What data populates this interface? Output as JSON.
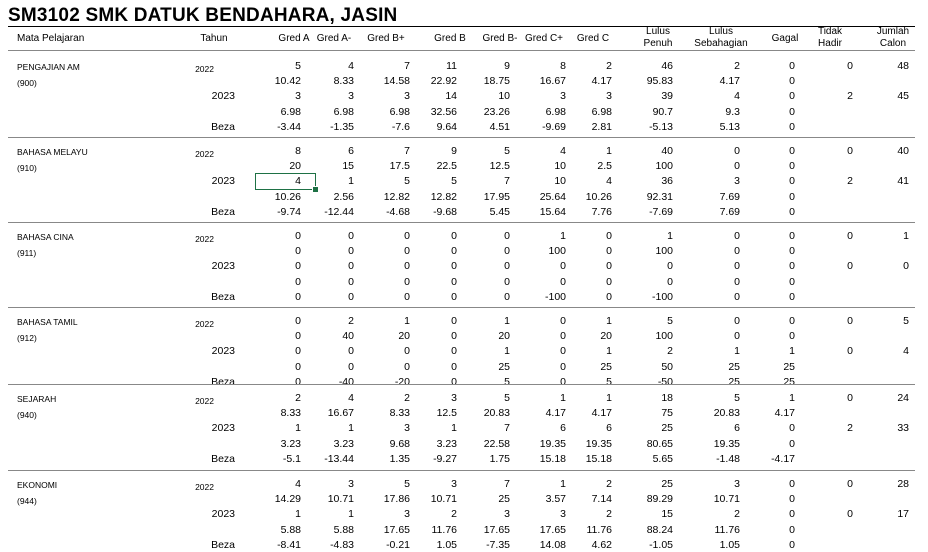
{
  "title": "SM3102 SMK DATUK BENDAHARA, JASIN",
  "headers": [
    [
      "Mata Pelajaran"
    ],
    [
      "Tahun"
    ],
    [
      "Gred A"
    ],
    [
      "Gred A-"
    ],
    [
      "Gred B+"
    ],
    [
      "Gred B"
    ],
    [
      "Gred B-"
    ],
    [
      "Gred C+"
    ],
    [
      "Gred C"
    ],
    [
      "Lulus",
      "Penuh"
    ],
    [
      "Lulus",
      "Sebahagian"
    ],
    [
      "Gagal"
    ],
    [
      "Tidak",
      "Hadir"
    ],
    [
      "Jumlah",
      "Calon"
    ]
  ],
  "beza_label": "Beza",
  "subjects": [
    {
      "name": "PENGAJIAN AM",
      "code": "(900)",
      "year1": "2022",
      "year2": "2023",
      "rows": [
        [
          "5",
          "4",
          "7",
          "11",
          "9",
          "8",
          "2",
          "46",
          "2",
          "0"
        ],
        [
          "10.42",
          "8.33",
          "14.58",
          "22.92",
          "18.75",
          "16.67",
          "4.17",
          "95.83",
          "4.17",
          "0"
        ],
        [
          "3",
          "3",
          "3",
          "14",
          "10",
          "3",
          "3",
          "39",
          "4",
          "0"
        ],
        [
          "6.98",
          "6.98",
          "6.98",
          "32.56",
          "23.26",
          "6.98",
          "6.98",
          "90.7",
          "9.3",
          "0"
        ],
        [
          "-3.44",
          "-1.35",
          "-7.6",
          "9.64",
          "4.51",
          "-9.69",
          "2.81",
          "-5.13",
          "5.13",
          "0"
        ]
      ],
      "th1": "0",
      "jc1": "48",
      "th2": "2",
      "jc2": "45"
    },
    {
      "name": "BAHASA MELAYU",
      "code": "(910)",
      "year1": "2022",
      "year2": "2023",
      "rows": [
        [
          "8",
          "6",
          "7",
          "9",
          "5",
          "4",
          "1",
          "40",
          "0",
          "0"
        ],
        [
          "20",
          "15",
          "17.5",
          "22.5",
          "12.5",
          "10",
          "2.5",
          "100",
          "0",
          "0"
        ],
        [
          "4",
          "1",
          "5",
          "5",
          "7",
          "10",
          "4",
          "36",
          "3",
          "0"
        ],
        [
          "10.26",
          "2.56",
          "12.82",
          "12.82",
          "17.95",
          "25.64",
          "10.26",
          "92.31",
          "7.69",
          "0"
        ],
        [
          "-9.74",
          "-12.44",
          "-4.68",
          "-9.68",
          "5.45",
          "15.64",
          "7.76",
          "-7.69",
          "7.69",
          "0"
        ]
      ],
      "th1": "0",
      "jc1": "40",
      "th2": "2",
      "jc2": "41"
    },
    {
      "name": "BAHASA CINA",
      "code": "(911)",
      "year1": "2022",
      "year2": "2023",
      "rows": [
        [
          "0",
          "0",
          "0",
          "0",
          "0",
          "1",
          "0",
          "1",
          "0",
          "0"
        ],
        [
          "0",
          "0",
          "0",
          "0",
          "0",
          "100",
          "0",
          "100",
          "0",
          "0"
        ],
        [
          "0",
          "0",
          "0",
          "0",
          "0",
          "0",
          "0",
          "0",
          "0",
          "0"
        ],
        [
          "0",
          "0",
          "0",
          "0",
          "0",
          "0",
          "0",
          "0",
          "0",
          "0"
        ],
        [
          "0",
          "0",
          "0",
          "0",
          "0",
          "-100",
          "0",
          "-100",
          "0",
          "0"
        ]
      ],
      "th1": "0",
      "jc1": "1",
      "th2": "0",
      "jc2": "0"
    },
    {
      "name": "BAHASA TAMIL",
      "code": "(912)",
      "year1": "2022",
      "year2": "2023",
      "rows": [
        [
          "0",
          "2",
          "1",
          "0",
          "1",
          "0",
          "1",
          "5",
          "0",
          "0"
        ],
        [
          "0",
          "40",
          "20",
          "0",
          "20",
          "0",
          "20",
          "100",
          "0",
          "0"
        ],
        [
          "0",
          "0",
          "0",
          "0",
          "1",
          "0",
          "1",
          "2",
          "1",
          "1"
        ],
        [
          "0",
          "0",
          "0",
          "0",
          "25",
          "0",
          "25",
          "50",
          "25",
          "25"
        ],
        [
          "0",
          "-40",
          "-20",
          "0",
          "5",
          "0",
          "5",
          "-50",
          "25",
          "25"
        ]
      ],
      "th1": "0",
      "jc1": "5",
      "th2": "0",
      "jc2": "4"
    },
    {
      "name": "SEJARAH",
      "code": "(940)",
      "year1": "2022",
      "year2": "2023",
      "rows": [
        [
          "2",
          "4",
          "2",
          "3",
          "5",
          "1",
          "1",
          "18",
          "5",
          "1"
        ],
        [
          "8.33",
          "16.67",
          "8.33",
          "12.5",
          "20.83",
          "4.17",
          "4.17",
          "75",
          "20.83",
          "4.17"
        ],
        [
          "1",
          "1",
          "3",
          "1",
          "7",
          "6",
          "6",
          "25",
          "6",
          "0"
        ],
        [
          "3.23",
          "3.23",
          "9.68",
          "3.23",
          "22.58",
          "19.35",
          "19.35",
          "80.65",
          "19.35",
          "0"
        ],
        [
          "-5.1",
          "-13.44",
          "1.35",
          "-9.27",
          "1.75",
          "15.18",
          "15.18",
          "5.65",
          "-1.48",
          "-4.17"
        ]
      ],
      "th1": "0",
      "jc1": "24",
      "th2": "2",
      "jc2": "33"
    },
    {
      "name": "EKONOMI",
      "code": "(944)",
      "year1": "2022",
      "year2": "2023",
      "rows": [
        [
          "4",
          "3",
          "5",
          "3",
          "7",
          "1",
          "2",
          "25",
          "3",
          "0"
        ],
        [
          "14.29",
          "10.71",
          "17.86",
          "10.71",
          "25",
          "3.57",
          "7.14",
          "89.29",
          "10.71",
          "0"
        ],
        [
          "1",
          "1",
          "3",
          "2",
          "3",
          "3",
          "2",
          "15",
          "2",
          "0"
        ],
        [
          "5.88",
          "5.88",
          "17.65",
          "11.76",
          "17.65",
          "17.65",
          "11.76",
          "88.24",
          "11.76",
          "0"
        ],
        [
          "-8.41",
          "-4.83",
          "-0.21",
          "1.05",
          "-7.35",
          "14.08",
          "4.62",
          "-1.05",
          "1.05",
          "0"
        ]
      ],
      "th1": "0",
      "jc1": "28",
      "th2": "0",
      "jc2": "17"
    }
  ]
}
